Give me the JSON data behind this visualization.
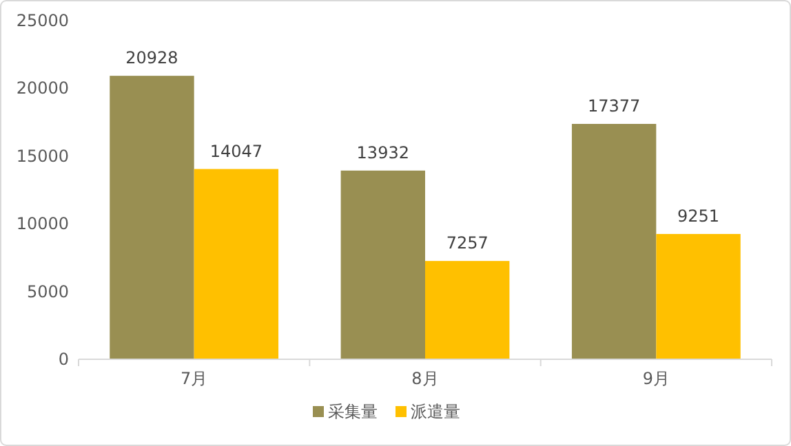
{
  "chart_data": {
    "type": "bar",
    "categories": [
      "7月",
      "8月",
      "9月"
    ],
    "series": [
      {
        "name": "采集量",
        "color": "#998f52",
        "values": [
          20928,
          13932,
          17377
        ]
      },
      {
        "name": "派遣量",
        "color": "#ffc000",
        "values": [
          14047,
          7257,
          9251
        ]
      }
    ],
    "ylim": [
      0,
      25000
    ],
    "yticks": [
      0,
      5000,
      10000,
      15000,
      20000,
      25000
    ],
    "data_labels": true,
    "legend": "bottom"
  }
}
